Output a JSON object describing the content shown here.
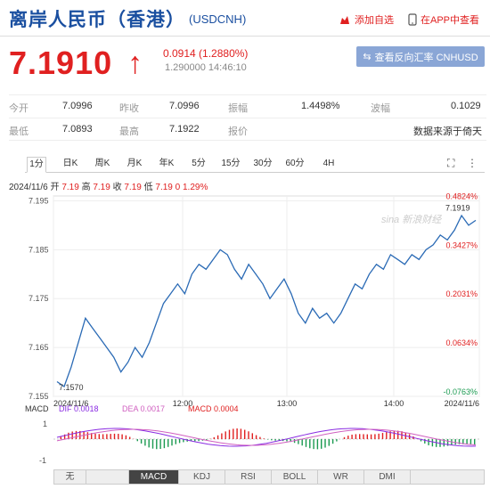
{
  "header": {
    "title": "离岸人民币（香港）",
    "code": "(USDCNH)",
    "add_fav": "添加自选",
    "app_view": "在APP中查看"
  },
  "quote": {
    "price": "7.1910",
    "arrow": "↑",
    "change": "0.0914 (1.2880%)",
    "sub": "1.290000 14:46:10",
    "reverse_btn": "查看反向汇率 CNHUSD"
  },
  "stats": {
    "open_label": "今开",
    "open": "7.0996",
    "prev_label": "昨收",
    "prev": "7.0996",
    "amp_label": "振幅",
    "amp": "1.4498%",
    "wave_label": "波幅",
    "wave": "0.1029",
    "low_label": "最低",
    "low": "7.0893",
    "high_label": "最高",
    "high": "7.1922",
    "quote_label": "报价",
    "source": "数据来源于倚天"
  },
  "tabs": [
    "1分",
    "日K",
    "周K",
    "月K",
    "年K",
    "5分",
    "15分",
    "30分",
    "60分",
    "4H"
  ],
  "info": {
    "date": "2024/11/6",
    "open_l": "开",
    "open": "7.19",
    "high_l": "高",
    "high": "7.19",
    "close_l": "收",
    "close": "7.19",
    "low_l": "低",
    "low": "7.19",
    "chg": "0",
    "pct": "1.29%"
  },
  "chart_data": {
    "type": "line",
    "ylim": [
      7.155,
      7.196
    ],
    "yticks": [
      "7.195",
      "7.185",
      "7.175",
      "7.165",
      "7.155"
    ],
    "pct_ticks": [
      "0.4824%",
      "0.3427%",
      "0.2031%",
      "0.0634%",
      "-0.0763%"
    ],
    "xticks": [
      "2024/11/6",
      "12:00",
      "13:00",
      "14:00",
      "2024/11/6"
    ],
    "last_label": "7.1919",
    "low_label": "7.1570",
    "watermark": "sina 新浪财经",
    "values": [
      7.158,
      7.157,
      7.161,
      7.166,
      7.171,
      7.169,
      7.167,
      7.165,
      7.163,
      7.16,
      7.162,
      7.165,
      7.163,
      7.166,
      7.17,
      7.174,
      7.176,
      7.178,
      7.176,
      7.18,
      7.182,
      7.181,
      7.183,
      7.185,
      7.184,
      7.181,
      7.179,
      7.182,
      7.18,
      7.178,
      7.175,
      7.177,
      7.179,
      7.176,
      7.172,
      7.17,
      7.173,
      7.171,
      7.172,
      7.17,
      7.172,
      7.175,
      7.178,
      7.177,
      7.18,
      7.182,
      7.181,
      7.184,
      7.183,
      7.182,
      7.184,
      7.183,
      7.185,
      7.186,
      7.188,
      7.187,
      7.189,
      7.192,
      7.19,
      7.191
    ],
    "macd": {
      "dif_label": "DIF",
      "dif": "0.0018",
      "dea_label": "DEA",
      "dea": "0.0017",
      "macd_label": "MACD",
      "macd": "0.0004",
      "ylabels": [
        "1",
        "-1"
      ]
    }
  },
  "indicators": [
    "无",
    "MACD",
    "KDJ",
    "RSI",
    "BOLL",
    "WR",
    "DMI"
  ],
  "colors": {
    "red": "#e02020",
    "blue": "#1a4fa0",
    "line": "#2a6ab5",
    "green": "#1a9a50"
  }
}
